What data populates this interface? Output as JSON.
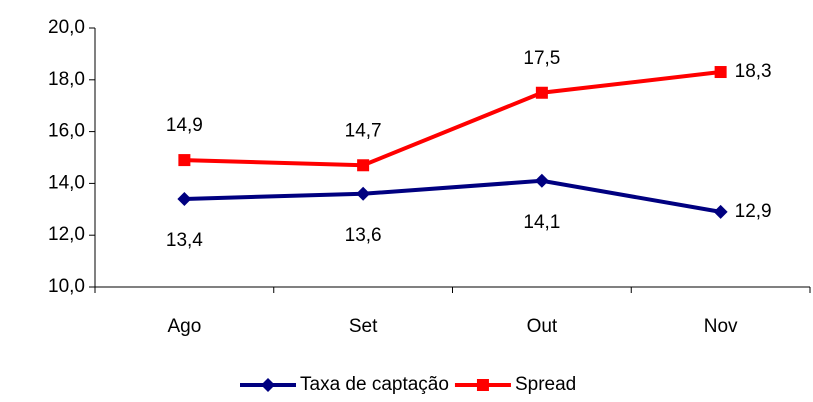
{
  "chart_data": {
    "type": "line",
    "categories": [
      "Ago",
      "Set",
      "Out",
      "Nov"
    ],
    "series": [
      {
        "name": "Taxa de captação",
        "color": "#000080",
        "values": [
          13.4,
          13.6,
          14.1,
          12.9
        ],
        "value_labels": [
          "13,4",
          "13,6",
          "14,1",
          "12,9"
        ]
      },
      {
        "name": "Spread",
        "color": "#ff0000",
        "values": [
          14.9,
          14.7,
          17.5,
          18.3
        ],
        "value_labels": [
          "14,9",
          "14,7",
          "17,5",
          "18,3"
        ]
      }
    ],
    "ylim": [
      10,
      20
    ],
    "yticks": [
      {
        "value": 10,
        "label": "10,0"
      },
      {
        "value": 12,
        "label": "12,0"
      },
      {
        "value": 14,
        "label": "14,0"
      },
      {
        "value": 16,
        "label": "16,0"
      },
      {
        "value": 18,
        "label": "18,0"
      },
      {
        "value": 20,
        "label": "20,0"
      }
    ],
    "legend": "bottom",
    "grid": false
  }
}
